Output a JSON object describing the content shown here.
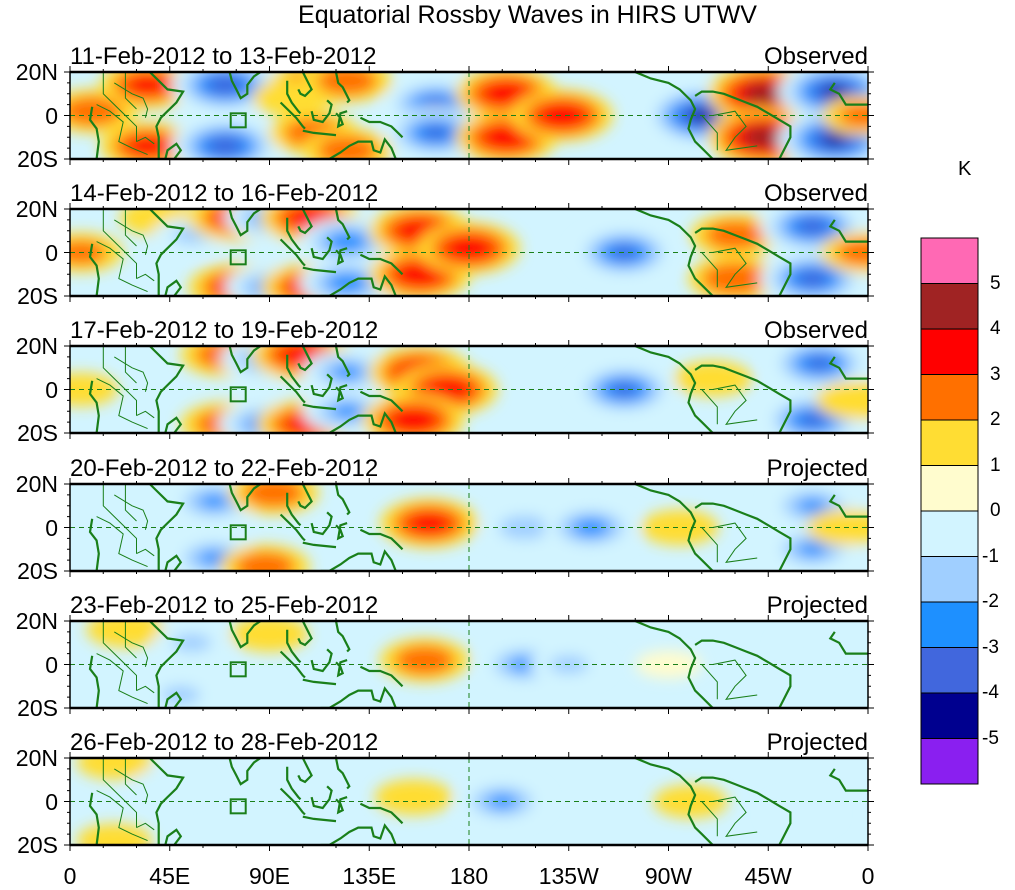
{
  "chart_data": {
    "type": "heatmap",
    "title": "Equatorial Rossby Waves in HIRS UTWV",
    "units": "K",
    "xlabel": "",
    "ylabel": "",
    "x_range": [
      0,
      360
    ],
    "y_range": [
      -20,
      20
    ],
    "x_ticks": [
      0,
      45,
      90,
      135,
      180,
      225,
      270,
      315,
      360
    ],
    "x_tick_labels": [
      "0",
      "45E",
      "90E",
      "135E",
      "180",
      "135W",
      "90W",
      "45W",
      "0"
    ],
    "y_ticks": [
      20,
      0,
      -20
    ],
    "y_tick_labels": [
      "20N",
      "0",
      "20S"
    ],
    "colorbar": {
      "labels": [
        "5",
        "4",
        "3",
        "2",
        "1",
        "0",
        "-1",
        "-2",
        "-3",
        "-4",
        "-5"
      ],
      "levels": [
        -5,
        -4,
        -3,
        -2,
        -1,
        0,
        1,
        2,
        3,
        4,
        5
      ],
      "colors": [
        "#8a1ff0",
        "#00008f",
        "#4167dd",
        "#1e90ff",
        "#a0cfff",
        "#d2f4ff",
        "#fffcce",
        "#ffdd33",
        "#ff7000",
        "#ff0000",
        "#a02323",
        "#ff69b4"
      ],
      "placement": "right"
    },
    "grid": false,
    "reference_lines": [
      "equator (0) dashed",
      "180 dashed"
    ],
    "panels": [
      {
        "date_range": "11-Feb-2012 to 13-Feb-2012",
        "status": "Observed",
        "features": [
          {
            "lon": 10,
            "lat": 2,
            "value": 2.5
          },
          {
            "lon": 35,
            "lat": 14,
            "value": 3
          },
          {
            "lon": 35,
            "lat": -14,
            "value": 3
          },
          {
            "lon": 70,
            "lat": 14,
            "value": -4
          },
          {
            "lon": 70,
            "lat": -14,
            "value": -4
          },
          {
            "lon": 110,
            "lat": 14,
            "value": 2.5
          },
          {
            "lon": 110,
            "lat": -8,
            "value": 2.5
          },
          {
            "lon": 100,
            "lat": 8,
            "value": 1.5
          },
          {
            "lon": 125,
            "lat": 16,
            "value": 2.5
          },
          {
            "lon": 125,
            "lat": -16,
            "value": 2.5
          },
          {
            "lon": 165,
            "lat": 5,
            "value": -3.5
          },
          {
            "lon": 165,
            "lat": -8,
            "value": -3.5
          },
          {
            "lon": 197,
            "lat": 10,
            "value": 3.5
          },
          {
            "lon": 197,
            "lat": -10,
            "value": 3.5
          },
          {
            "lon": 222,
            "lat": 0,
            "value": 3.5
          },
          {
            "lon": 285,
            "lat": 0,
            "value": -4.5
          },
          {
            "lon": 313,
            "lat": 10,
            "value": 4.3
          },
          {
            "lon": 313,
            "lat": -10,
            "value": 4.3
          },
          {
            "lon": 345,
            "lat": 11,
            "value": -4.5
          },
          {
            "lon": 345,
            "lat": -11,
            "value": -4.5
          },
          {
            "lon": 358,
            "lat": 0,
            "value": 2
          }
        ]
      },
      {
        "date_range": "14-Feb-2012 to 16-Feb-2012",
        "status": "Observed",
        "features": [
          {
            "lon": 5,
            "lat": 0,
            "value": 2
          },
          {
            "lon": 40,
            "lat": 16,
            "value": 1.5
          },
          {
            "lon": 55,
            "lat": 8,
            "value": -1.5
          },
          {
            "lon": 75,
            "lat": 16,
            "value": 3
          },
          {
            "lon": 90,
            "lat": 16,
            "value": -2.5
          },
          {
            "lon": 108,
            "lat": 16,
            "value": 3.2
          },
          {
            "lon": 75,
            "lat": -16,
            "value": 3
          },
          {
            "lon": 90,
            "lat": -16,
            "value": -2.5
          },
          {
            "lon": 108,
            "lat": -16,
            "value": 3
          },
          {
            "lon": 125,
            "lat": 5,
            "value": -3
          },
          {
            "lon": 125,
            "lat": -14,
            "value": -3
          },
          {
            "lon": 158,
            "lat": 10,
            "value": 3.5
          },
          {
            "lon": 158,
            "lat": -10,
            "value": 3.5
          },
          {
            "lon": 180,
            "lat": 2,
            "value": 3.5
          },
          {
            "lon": 250,
            "lat": 0,
            "value": -3.5
          },
          {
            "lon": 300,
            "lat": 8,
            "value": 2.5
          },
          {
            "lon": 300,
            "lat": -12,
            "value": 2.8
          },
          {
            "lon": 335,
            "lat": 12,
            "value": -3.8
          },
          {
            "lon": 335,
            "lat": -12,
            "value": -3.8
          },
          {
            "lon": 358,
            "lat": 0,
            "value": 2.2
          }
        ]
      },
      {
        "date_range": "17-Feb-2012 to 19-Feb-2012",
        "status": "Observed",
        "features": [
          {
            "lon": 5,
            "lat": 0,
            "value": 1.2
          },
          {
            "lon": 70,
            "lat": 16,
            "value": 2.5
          },
          {
            "lon": 88,
            "lat": 14,
            "value": -2.5
          },
          {
            "lon": 104,
            "lat": 16,
            "value": 3.2
          },
          {
            "lon": 70,
            "lat": -16,
            "value": 2.5
          },
          {
            "lon": 88,
            "lat": -16,
            "value": -2.8
          },
          {
            "lon": 106,
            "lat": -16,
            "value": 3
          },
          {
            "lon": 125,
            "lat": 8,
            "value": -2.5
          },
          {
            "lon": 125,
            "lat": -10,
            "value": -2.5
          },
          {
            "lon": 158,
            "lat": 8,
            "value": 3.5
          },
          {
            "lon": 170,
            "lat": 0,
            "value": 3.5
          },
          {
            "lon": 155,
            "lat": -14,
            "value": 3.5
          },
          {
            "lon": 250,
            "lat": 0,
            "value": -3.5
          },
          {
            "lon": 290,
            "lat": 5,
            "value": 1.5
          },
          {
            "lon": 338,
            "lat": 12,
            "value": -3.5
          },
          {
            "lon": 335,
            "lat": -14,
            "value": -3.5
          },
          {
            "lon": 355,
            "lat": -5,
            "value": 1.8
          }
        ]
      },
      {
        "date_range": "20-Feb-2012 to 22-Feb-2012",
        "status": "Projected",
        "features": [
          {
            "lon": 65,
            "lat": 12,
            "value": -2.5
          },
          {
            "lon": 65,
            "lat": -14,
            "value": -2.5
          },
          {
            "lon": 92,
            "lat": 16,
            "value": 2.5
          },
          {
            "lon": 88,
            "lat": -18,
            "value": 2.5
          },
          {
            "lon": 162,
            "lat": 2,
            "value": 3.2
          },
          {
            "lon": 205,
            "lat": 0,
            "value": -2
          },
          {
            "lon": 235,
            "lat": 0,
            "value": -2.8
          },
          {
            "lon": 275,
            "lat": 0,
            "value": 1.5
          },
          {
            "lon": 335,
            "lat": 10,
            "value": -2.5
          },
          {
            "lon": 335,
            "lat": -10,
            "value": -2.5
          },
          {
            "lon": 350,
            "lat": 0,
            "value": 1.5
          }
        ]
      },
      {
        "date_range": "23-Feb-2012 to 25-Feb-2012",
        "status": "Projected",
        "features": [
          {
            "lon": 25,
            "lat": 16,
            "value": 1.5
          },
          {
            "lon": 55,
            "lat": 10,
            "value": -1.5
          },
          {
            "lon": 50,
            "lat": -14,
            "value": -1.5
          },
          {
            "lon": 90,
            "lat": 14,
            "value": 1.5
          },
          {
            "lon": 160,
            "lat": 2,
            "value": 2.5
          },
          {
            "lon": 205,
            "lat": 0,
            "value": -2.5
          },
          {
            "lon": 225,
            "lat": 0,
            "value": -1.5
          },
          {
            "lon": 270,
            "lat": 0,
            "value": 0.5
          },
          {
            "lon": 335,
            "lat": 8,
            "value": -1.2
          }
        ]
      },
      {
        "date_range": "26-Feb-2012 to 28-Feb-2012",
        "status": "Projected",
        "features": [
          {
            "lon": 20,
            "lat": 18,
            "value": 1.3
          },
          {
            "lon": 20,
            "lat": -18,
            "value": 1.3
          },
          {
            "lon": 45,
            "lat": 8,
            "value": -1.2
          },
          {
            "lon": 155,
            "lat": 2,
            "value": 1.5
          },
          {
            "lon": 195,
            "lat": 0,
            "value": -2.5
          },
          {
            "lon": 280,
            "lat": 0,
            "value": 1.2
          },
          {
            "lon": 330,
            "lat": -5,
            "value": -1
          }
        ]
      }
    ]
  }
}
